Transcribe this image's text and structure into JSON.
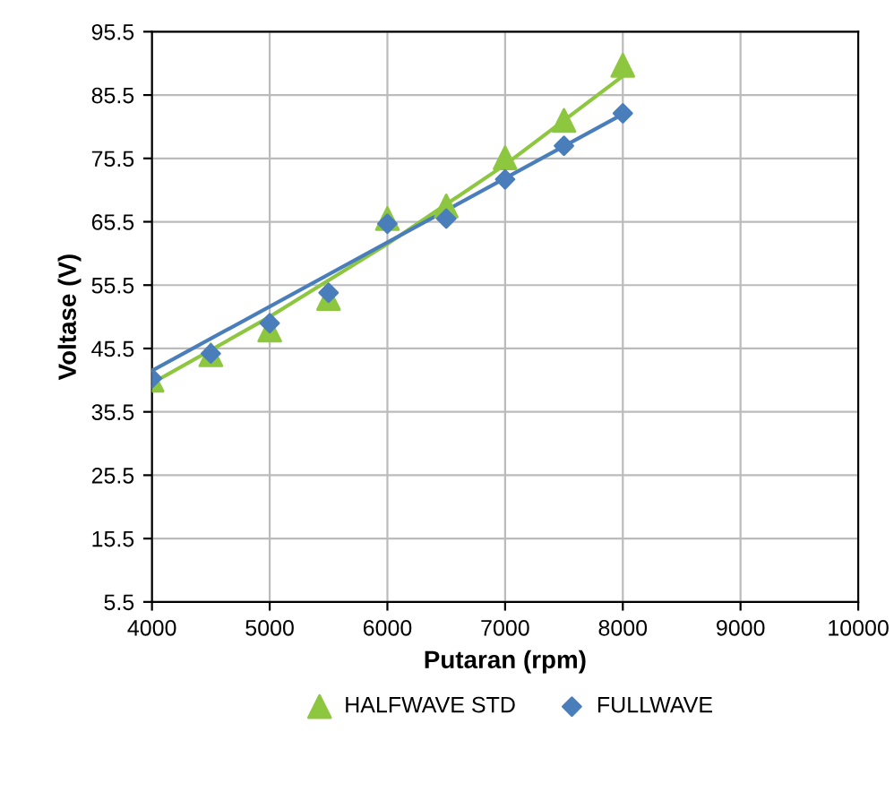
{
  "chart_data": {
    "type": "scatter",
    "xlabel": "Putaran (rpm)",
    "ylabel": "Voltase (V)",
    "x": [
      4000,
      4500,
      5000,
      5500,
      6000,
      6500,
      7000,
      7500,
      8000
    ],
    "series": [
      {
        "name": "HALFWAVE STD",
        "color": "#8dc63f",
        "marker": "triangle",
        "values": [
          40.5,
          44.5,
          48.4,
          53.4,
          66,
          68,
          75.6,
          81.5,
          90.2
        ]
      },
      {
        "name": "FULLWAVE",
        "color": "#4a7ebb",
        "marker": "diamond",
        "values": [
          40.8,
          44.7,
          49.5,
          54.3,
          65.2,
          66,
          72.2,
          77.5,
          82.6
        ]
      },
      {
        "type": "line",
        "color": "#8dc63f",
        "marker": "none",
        "x": [
          4000,
          5000,
          6000,
          7000,
          8000
        ],
        "values": [
          40,
          50.5,
          62,
          74.5,
          88.5
        ]
      },
      {
        "type": "line",
        "color": "#4a7ebb",
        "marker": "none",
        "x": [
          4000,
          8000
        ],
        "values": [
          42,
          82.5
        ]
      }
    ],
    "xlim": [
      4000,
      10000
    ],
    "xticks": [
      4000,
      5000,
      6000,
      7000,
      8000,
      9000,
      10000
    ],
    "ylim": [
      5.5,
      95.5
    ],
    "yticks": [
      5.5,
      15.5,
      25.5,
      35.5,
      45.5,
      55.5,
      65.5,
      75.5,
      85.5,
      95.5
    ],
    "grid": true,
    "legend": "bottom"
  }
}
